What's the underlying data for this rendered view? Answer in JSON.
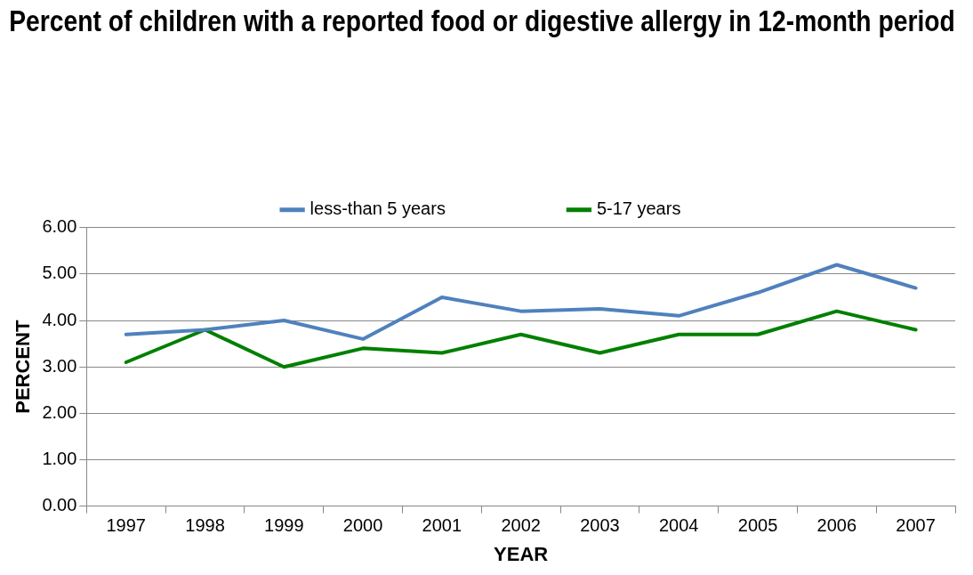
{
  "chart_data": {
    "type": "line",
    "title": "Percent of children with a reported food or digestive allergy in 12-month period",
    "xlabel": "YEAR",
    "ylabel": "PERCENT",
    "categories": [
      "1997",
      "1998",
      "1999",
      "2000",
      "2001",
      "2002",
      "2003",
      "2004",
      "2005",
      "2006",
      "2007"
    ],
    "series": [
      {
        "name": "less-than 5 years",
        "color": "#4f81bd",
        "values": [
          3.7,
          3.8,
          4.0,
          3.6,
          4.5,
          4.2,
          4.25,
          4.1,
          4.6,
          5.2,
          4.7
        ]
      },
      {
        "name": "5-17 years",
        "color": "#008000",
        "values": [
          3.1,
          3.8,
          3.0,
          3.4,
          3.3,
          3.7,
          3.3,
          3.7,
          3.7,
          4.2,
          3.8
        ]
      }
    ],
    "ylim": [
      0,
      6
    ],
    "yticks": [
      {
        "value": 0,
        "label": "0.00"
      },
      {
        "value": 1,
        "label": "1.00"
      },
      {
        "value": 2,
        "label": "2.00"
      },
      {
        "value": 3,
        "label": "3.00"
      },
      {
        "value": 4,
        "label": "4.00"
      },
      {
        "value": 5,
        "label": "5.00"
      },
      {
        "value": 6,
        "label": "6.00"
      }
    ],
    "grid": "y",
    "legend": "top",
    "marker": "none",
    "line_style": "solid"
  }
}
